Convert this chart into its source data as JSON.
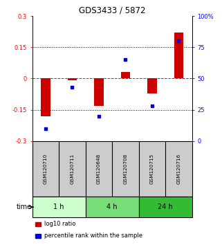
{
  "title": "GDS3433 / 5872",
  "samples": [
    "GSM120710",
    "GSM120711",
    "GSM120648",
    "GSM120708",
    "GSM120715",
    "GSM120716"
  ],
  "log10_ratio": [
    -0.18,
    -0.01,
    -0.13,
    0.03,
    -0.07,
    0.22
  ],
  "percentile_rank": [
    10,
    43,
    20,
    65,
    28,
    80
  ],
  "ylim_left": [
    -0.3,
    0.3
  ],
  "ylim_right": [
    0,
    100
  ],
  "yticks_left": [
    -0.3,
    -0.15,
    0,
    0.15,
    0.3
  ],
  "yticks_right": [
    0,
    25,
    50,
    75,
    100
  ],
  "ytick_labels_left": [
    "-0.3",
    "-0.15",
    "0",
    "0.15",
    "0.3"
  ],
  "ytick_labels_right": [
    "0",
    "25",
    "50",
    "75",
    "100%"
  ],
  "dotted_lines": [
    -0.15,
    0.15
  ],
  "red_dashed_line": 0,
  "bar_color": "#cc0000",
  "dot_color": "#0000cc",
  "bar_width": 0.35,
  "time_groups": [
    {
      "label": "1 h",
      "samples": [
        "GSM120710",
        "GSM120711"
      ],
      "color": "#ccffcc"
    },
    {
      "label": "4 h",
      "samples": [
        "GSM120648",
        "GSM120708"
      ],
      "color": "#77dd77"
    },
    {
      "label": "24 h",
      "samples": [
        "GSM120715",
        "GSM120716"
      ],
      "color": "#33bb33"
    }
  ],
  "legend_red_label": "log10 ratio",
  "legend_blue_label": "percentile rank within the sample",
  "xlabel_time": "time",
  "sample_box_color": "#cccccc",
  "background_color": "#ffffff"
}
